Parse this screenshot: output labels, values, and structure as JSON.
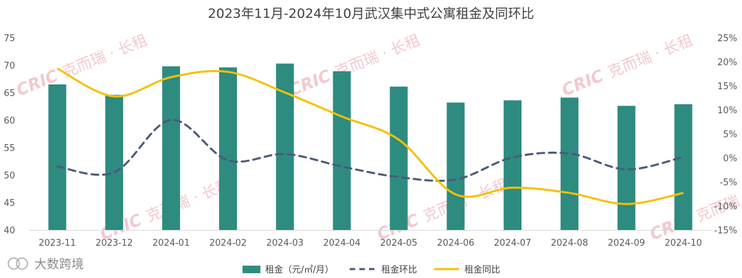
{
  "chart_data": {
    "type": "bar+line",
    "title": "2023年11月-2024年10月武汉集中式公寓租金及同环比",
    "categories": [
      "2023-11",
      "2023-12",
      "2024-01",
      "2024-02",
      "2024-03",
      "2024-04",
      "2024-05",
      "2024-06",
      "2024-07",
      "2024-08",
      "2024-09",
      "2024-10"
    ],
    "series": [
      {
        "name": "租金（元/㎡/月）",
        "type": "bar",
        "axis": "left",
        "color": "#2e8b80",
        "values": [
          66.5,
          64.6,
          69.8,
          69.6,
          70.3,
          68.9,
          66.1,
          63.2,
          63.6,
          64.1,
          62.6,
          62.9
        ]
      },
      {
        "name": "租金环比",
        "type": "line",
        "style": "dashed",
        "axis": "right",
        "color": "#4d5a7a",
        "values": [
          -1.8,
          -3.0,
          7.9,
          -0.5,
          0.8,
          -1.8,
          -4.0,
          -4.5,
          0.1,
          0.9,
          -2.4,
          0.2
        ]
      },
      {
        "name": "租金同比",
        "type": "line",
        "style": "solid",
        "axis": "right",
        "color": "#f5c000",
        "values": [
          18.6,
          12.8,
          16.8,
          17.9,
          13.6,
          8.6,
          3.8,
          -7.6,
          -6.2,
          -7.3,
          -9.6,
          -7.3
        ]
      }
    ],
    "left_axis": {
      "min": 40,
      "max": 75,
      "ticks": [
        "40",
        "45",
        "50",
        "55",
        "60",
        "65",
        "70",
        "75"
      ]
    },
    "right_axis": {
      "min": -15,
      "max": 25,
      "ticks": [
        "-15%",
        "-10%",
        "-5%",
        "0%",
        "5%",
        "10%",
        "15%",
        "20%",
        "25%"
      ]
    },
    "legend_position": "bottom",
    "grid": false
  },
  "watermark": {
    "logo": "CRIC",
    "text": "克而瑞 · 长租"
  },
  "source_label": "大数跨境"
}
